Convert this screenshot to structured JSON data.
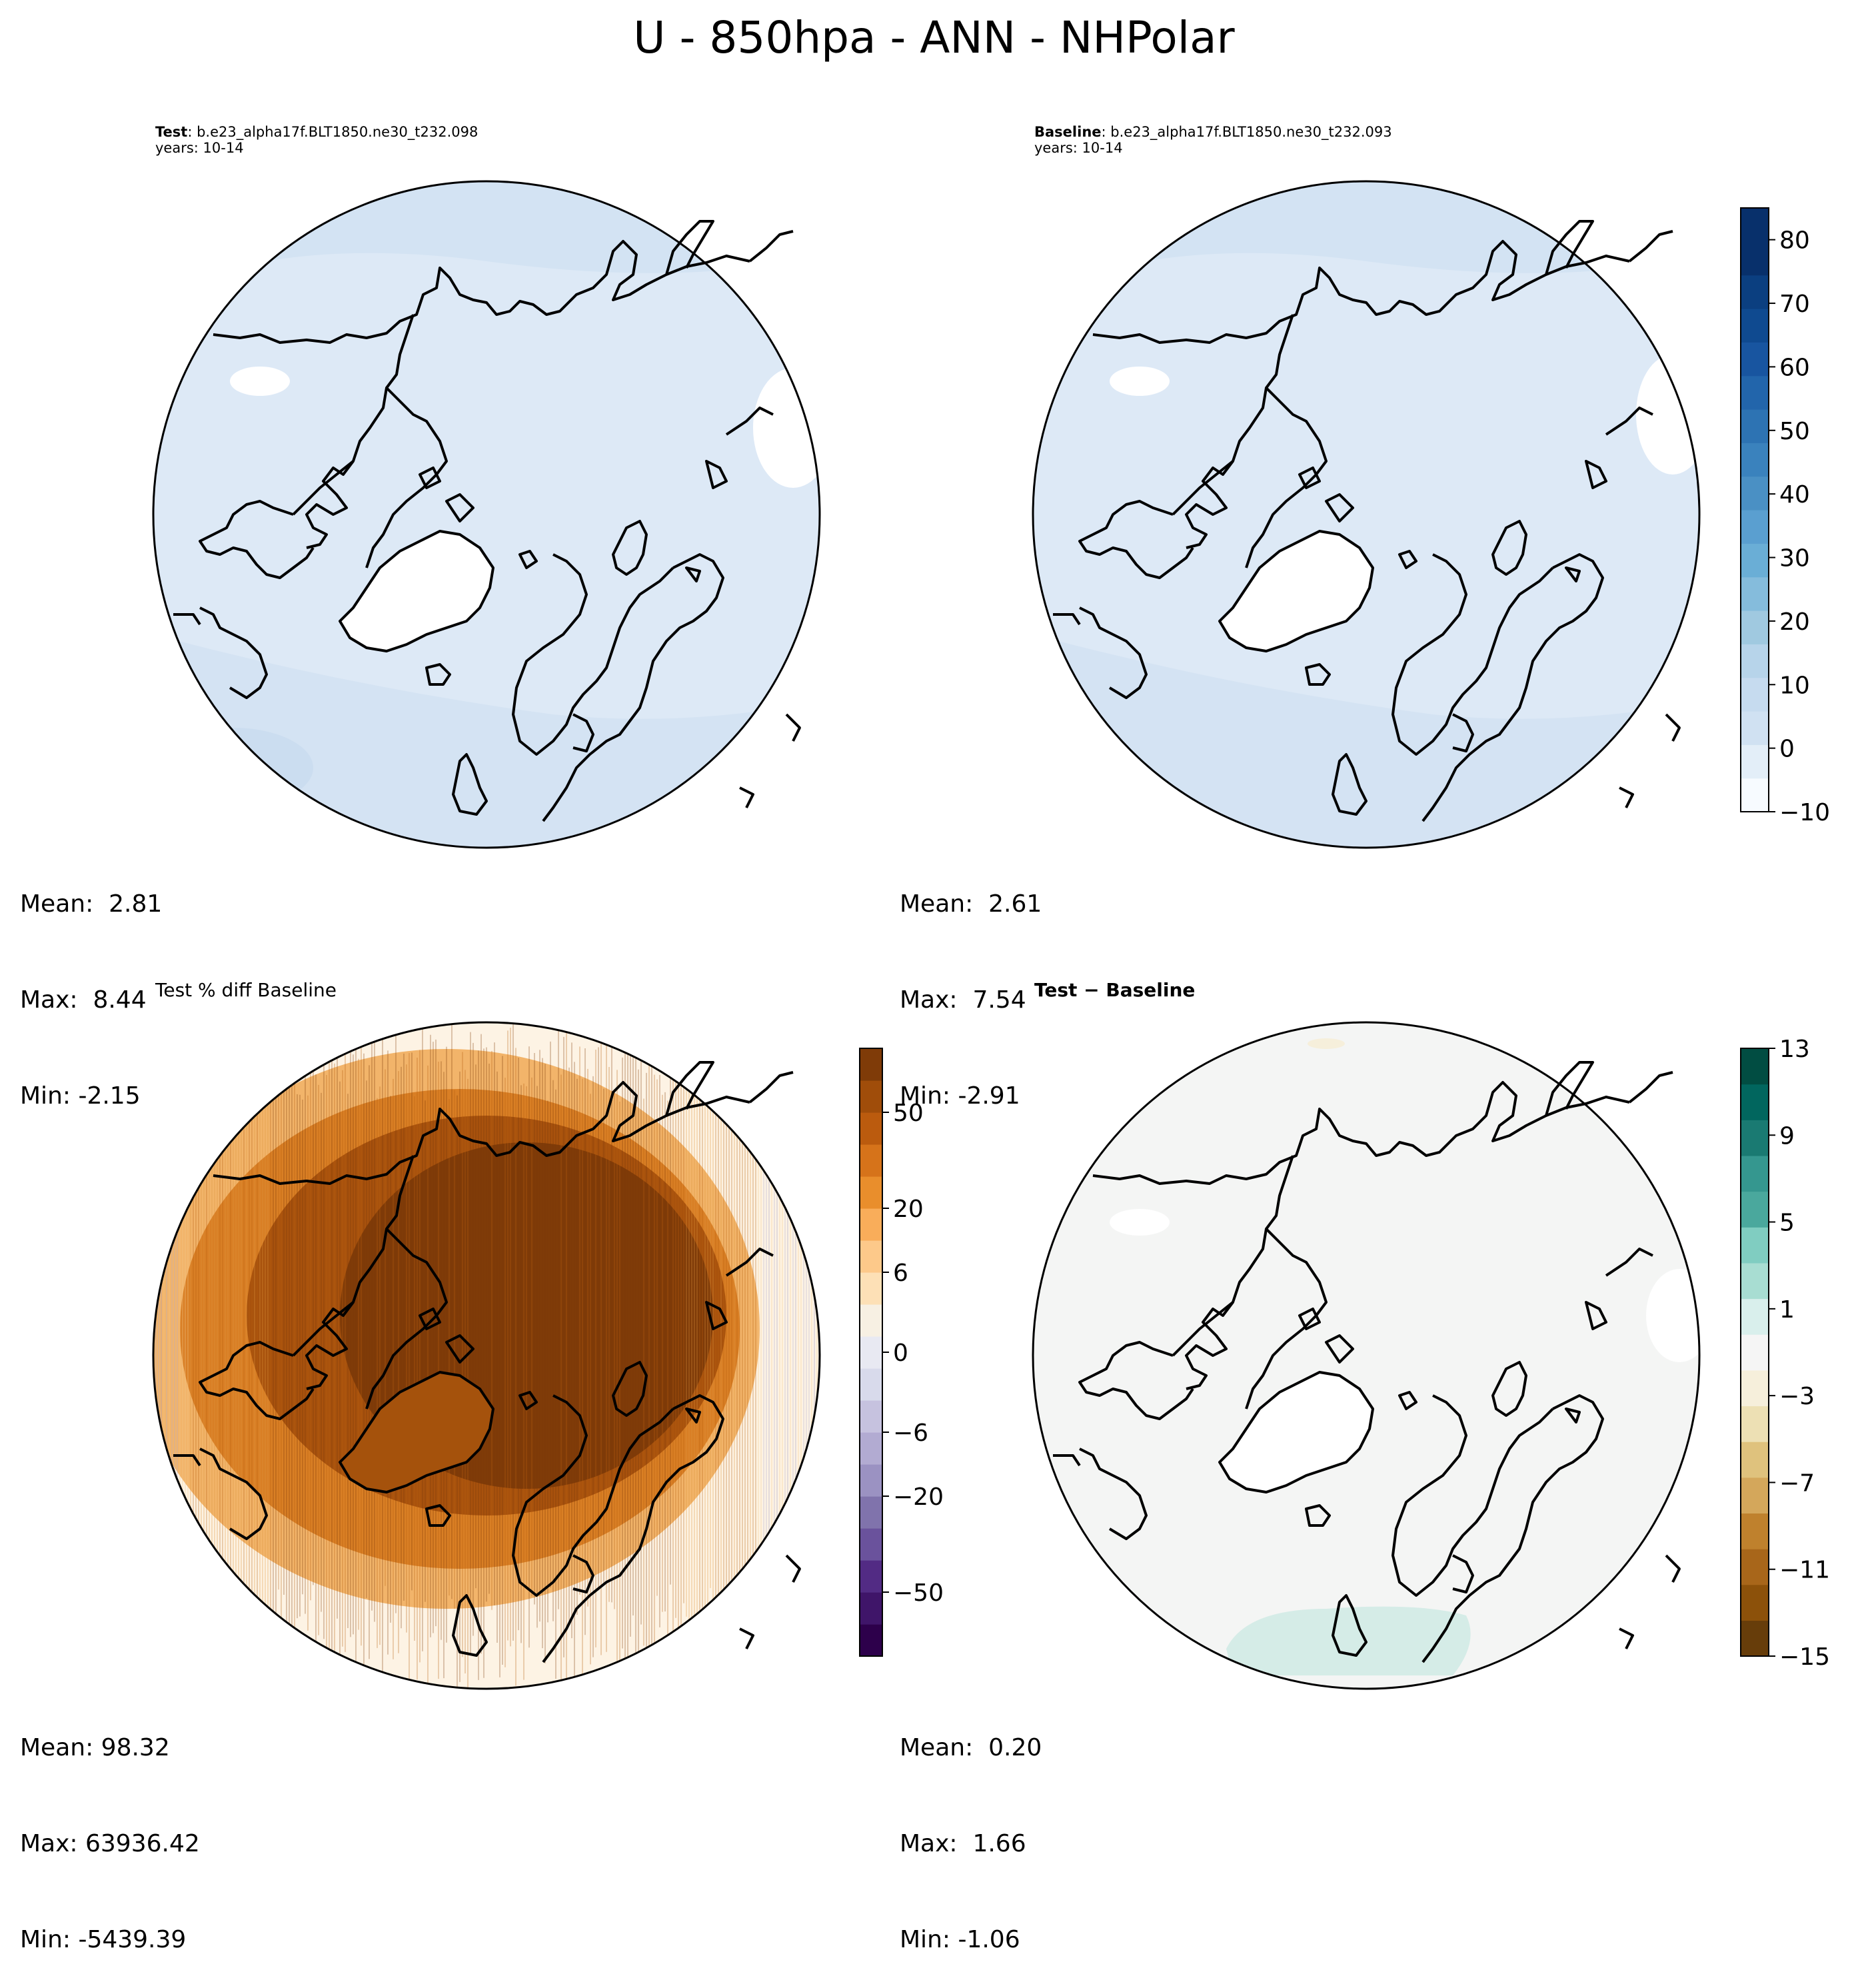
{
  "figure": {
    "title": "U - 850hpa - ANN - NHPolar"
  },
  "panels": {
    "test": {
      "label_bold": "Test",
      "label_rest": ": b.e23_alpha17f.BLT1850.ne30_t232.098",
      "years": "years: 10-14",
      "stats": {
        "mean": "Mean:  2.81",
        "max": "Max:  8.44",
        "min": "Min: -2.15"
      }
    },
    "baseline": {
      "label_bold": "Baseline",
      "label_rest": ": b.e23_alpha17f.BLT1850.ne30_t232.093",
      "years": "years: 10-14",
      "stats": {
        "mean": "Mean:  2.61",
        "max": "Max:  7.54",
        "min": "Min: -2.91"
      }
    },
    "pct_diff": {
      "title": "Test % diff Baseline",
      "stats": {
        "mean": "Mean: 98.32",
        "max": "Max: 63936.42",
        "min": "Min: -5439.39"
      }
    },
    "diff": {
      "title": "Test − Baseline",
      "stats": {
        "mean": "Mean:  0.20",
        "max": "Max:  1.66",
        "min": "Min: -1.06"
      }
    }
  },
  "colorbars": {
    "main": {
      "ticks": [
        "−10",
        "0",
        "10",
        "20",
        "30",
        "40",
        "50",
        "60",
        "70",
        "80"
      ],
      "tick_values": [
        -10,
        0,
        10,
        20,
        30,
        40,
        50,
        60,
        70,
        80
      ],
      "range": [
        -10,
        85
      ],
      "colors": [
        "#f7fbff",
        "#e3eef8",
        "#d0e1f2",
        "#c6dbef",
        "#b7d4ea",
        "#a0c9e0",
        "#85bcdc",
        "#6aaed6",
        "#5a9fd0",
        "#4a90c4",
        "#3a82bd",
        "#2d73b3",
        "#2265ab",
        "#1855a0",
        "#0f4a90",
        "#0b3f80",
        "#08306b",
        "#08306b"
      ]
    },
    "pct": {
      "ticks": [
        "−50",
        "−20",
        "−6",
        "0",
        "6",
        "20",
        "50"
      ],
      "colors": [
        "#2d004b",
        "#3f1569",
        "#522b84",
        "#6a529c",
        "#8073ac",
        "#9b92c2",
        "#b2abd2",
        "#c6c2df",
        "#d8daeb",
        "#e8e9f2",
        "#f7f0e3",
        "#fde0b6",
        "#fdc98a",
        "#f9ad5a",
        "#e98e2c",
        "#d6731a",
        "#bb5b0e",
        "#a04d0a",
        "#7f3b08"
      ]
    },
    "diff": {
      "ticks": [
        "−15",
        "−11",
        "−7",
        "−3",
        "1",
        "5",
        "9",
        "13"
      ],
      "colors": [
        "#673d0a",
        "#8c510a",
        "#a8661a",
        "#bf812d",
        "#d4a75b",
        "#dfc27d",
        "#ede0b4",
        "#f6efdb",
        "#f5f5f5",
        "#d9efec",
        "#a8ddd2",
        "#80cdc1",
        "#4aa89d",
        "#35978f",
        "#1a7a72",
        "#01665e",
        "#014d42"
      ]
    }
  },
  "colors": {
    "land_white": "#ffffff",
    "base_fill": "#dde9f6",
    "band_fill": "#d2e2f2",
    "neutral_fill": "#f4f5f4",
    "teal_patch": "#d5ece7",
    "orange_brown": "#7f3b08"
  }
}
